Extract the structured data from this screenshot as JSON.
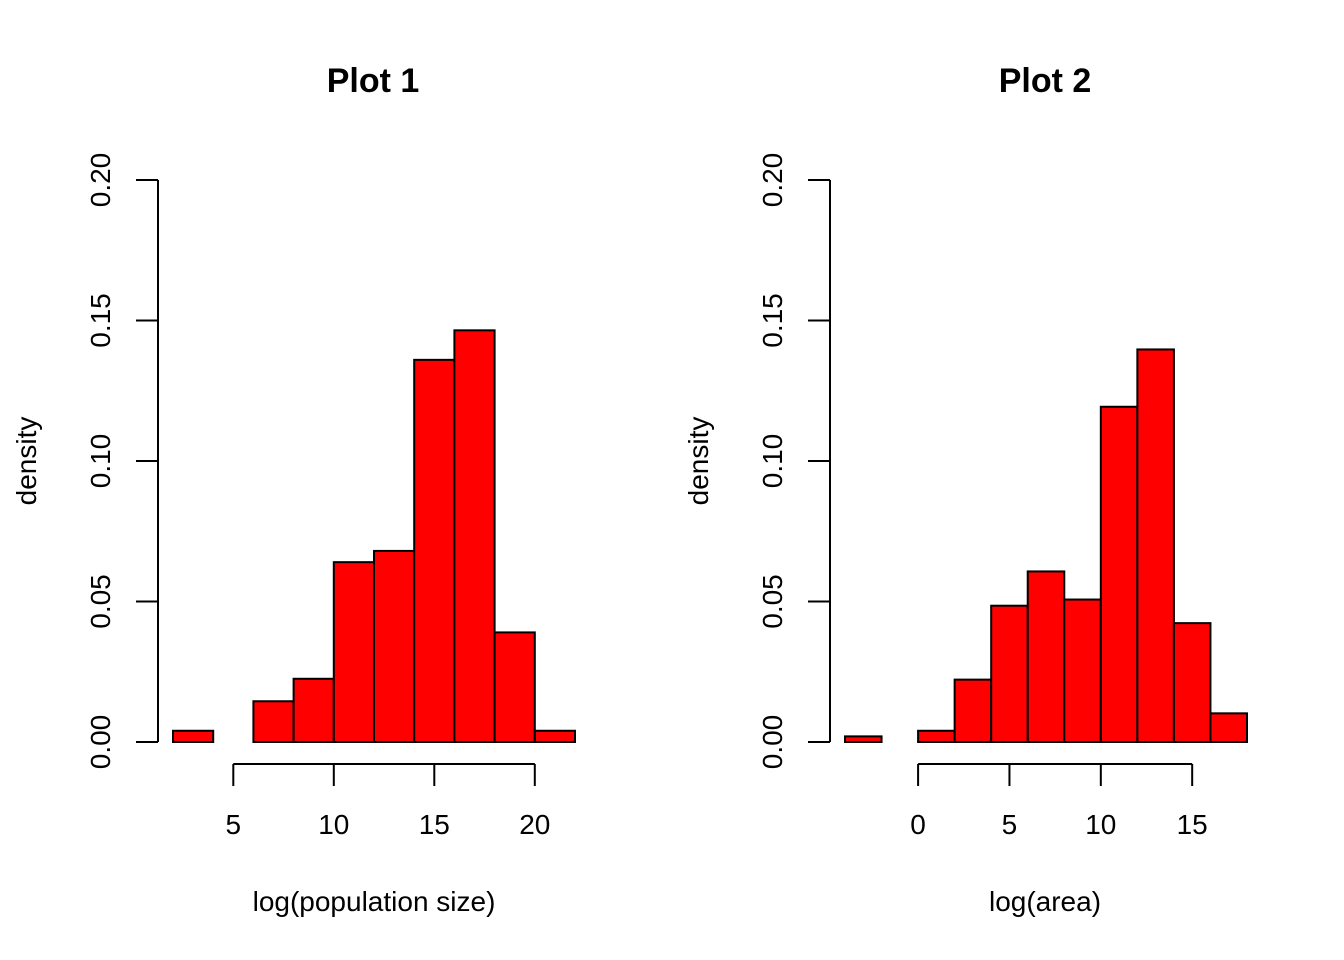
{
  "chart_data": [
    {
      "type": "bar",
      "title": "Plot 1",
      "xlabel": "log(population size)",
      "ylabel": "density",
      "bar_color": "#ff0000",
      "bin_edges": [
        2,
        4,
        6,
        8,
        10,
        12,
        14,
        16,
        18,
        20,
        22
      ],
      "values": [
        0.004,
        0.0,
        0.0145,
        0.0225,
        0.064,
        0.068,
        0.136,
        0.1465,
        0.039,
        0.004
      ],
      "xlim": [
        2,
        22
      ],
      "ylim": [
        0,
        0.2
      ],
      "xticks": [
        5,
        10,
        15,
        20
      ],
      "xtick_labels": [
        "5",
        "10",
        "15",
        "20"
      ],
      "yticks": [
        0,
        0.05,
        0.1,
        0.15,
        0.2
      ],
      "ytick_labels": [
        "0.00",
        "0.05",
        "0.10",
        "0.15",
        "0.20"
      ]
    },
    {
      "type": "bar",
      "title": "Plot 2",
      "xlabel": "log(area)",
      "ylabel": "density",
      "bar_color": "#ff0000",
      "bin_edges": [
        -4,
        -2,
        0,
        2,
        4,
        6,
        8,
        10,
        12,
        14,
        16,
        18
      ],
      "values": [
        0.002,
        0.0,
        0.004,
        0.0222,
        0.0485,
        0.0607,
        0.0507,
        0.1193,
        0.1397,
        0.0423,
        0.0102
      ],
      "xlim": [
        -4,
        18
      ],
      "ylim": [
        0,
        0.2
      ],
      "xticks": [
        0,
        5,
        10,
        15
      ],
      "xtick_labels": [
        "0",
        "5",
        "10",
        "15"
      ],
      "yticks": [
        0,
        0.05,
        0.1,
        0.15,
        0.2
      ],
      "ytick_labels": [
        "0.00",
        "0.05",
        "0.10",
        "0.15",
        "0.20"
      ]
    }
  ]
}
